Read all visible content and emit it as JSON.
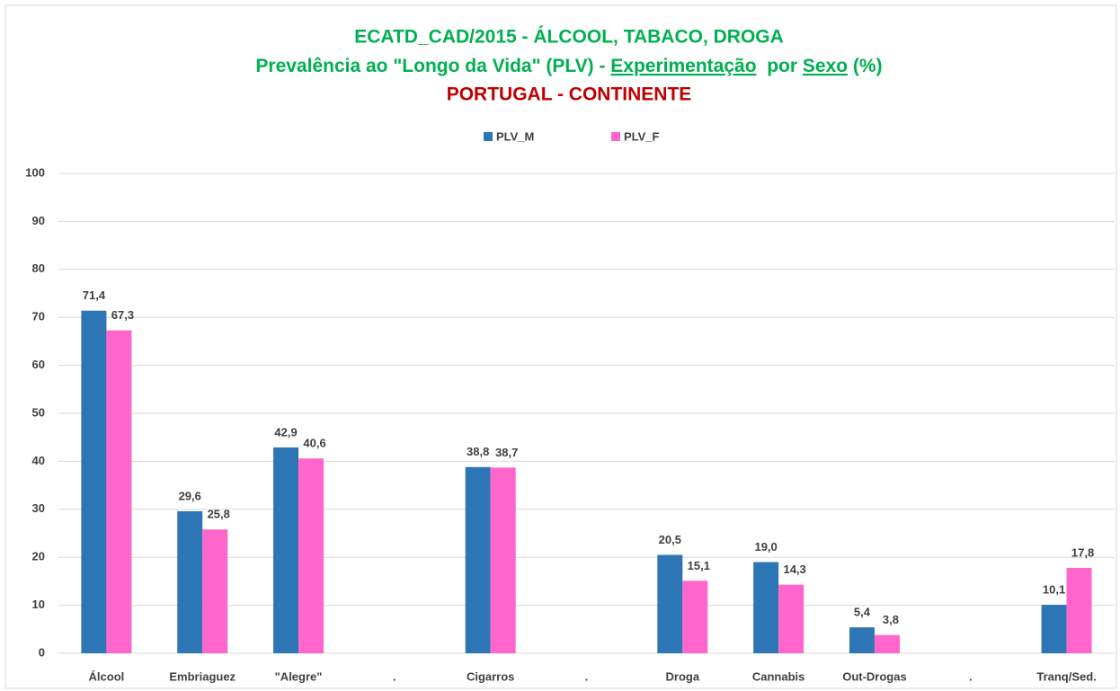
{
  "chart_data": {
    "type": "bar",
    "title": "ECATD_CAD/2015 - ÁLCOOL, TABACO, DROGA",
    "subtitle_parts": [
      "Prevalência ao \"Longo da Vida\" (PLV) - ",
      "Experimentação",
      "  por ",
      "Sexo",
      " (%)"
    ],
    "subtitle_underlined": [
      false,
      true,
      false,
      true,
      false
    ],
    "subtitle2": "PORTUGAL - CONTINENTE",
    "categories": [
      "Álcool",
      "Embriaguez",
      "\"Alegre\"",
      ".",
      "Cigarros",
      ".",
      "Droga",
      "Cannabis",
      "Out-Drogas",
      ".",
      "Tranq/Sed."
    ],
    "series": [
      {
        "name": "PLV_M",
        "color": "#2e75b6",
        "values": [
          71.4,
          29.6,
          42.9,
          null,
          38.8,
          null,
          20.5,
          19.0,
          5.4,
          null,
          10.1
        ],
        "value_labels": [
          "71,4",
          "29,6",
          "42,9",
          null,
          "38,8",
          null,
          "20,5",
          "19,0",
          "5,4",
          null,
          "10,1"
        ]
      },
      {
        "name": "PLV_F",
        "color": "#ff66cc",
        "values": [
          67.3,
          25.8,
          40.6,
          null,
          38.7,
          null,
          15.1,
          14.3,
          3.8,
          null,
          17.8
        ],
        "value_labels": [
          "67,3",
          "25,8",
          "40,6",
          null,
          "38,7",
          null,
          "15,1",
          "14,3",
          "3,8",
          null,
          "17,8"
        ]
      }
    ],
    "ylim": [
      0,
      100
    ],
    "yticks": [
      0,
      10,
      20,
      30,
      40,
      50,
      60,
      70,
      80,
      90,
      100
    ],
    "grid": true,
    "legend": "top"
  }
}
